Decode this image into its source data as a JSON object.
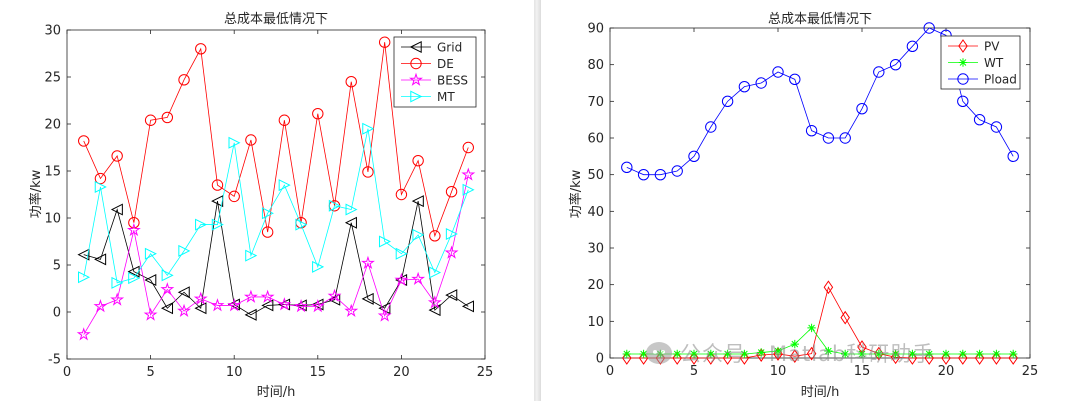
{
  "watermark": {
    "text": "公众号 · Matlab科研助手",
    "icon": "wechat-icon"
  },
  "chart_data": [
    {
      "type": "line",
      "title": "总成本最低情况下",
      "xlabel": "时间/h",
      "ylabel": "功率/kw",
      "xlim": [
        0,
        25
      ],
      "ylim": [
        -5,
        30
      ],
      "xticks": [
        0,
        5,
        10,
        15,
        20,
        25
      ],
      "yticks": [
        -5,
        0,
        5,
        10,
        15,
        20,
        25,
        30
      ],
      "grid": false,
      "legend_position": "top-right",
      "x": [
        1,
        2,
        3,
        4,
        5,
        6,
        7,
        8,
        9,
        10,
        11,
        12,
        13,
        14,
        15,
        16,
        17,
        18,
        19,
        20,
        21,
        22,
        23,
        24
      ],
      "series": [
        {
          "name": "Grid",
          "color": "#000000",
          "marker": "triangle-left",
          "values": [
            6.1,
            5.6,
            10.9,
            4.3,
            3.4,
            0.4,
            2.1,
            0.4,
            11.8,
            0.8,
            -0.3,
            0.7,
            0.8,
            0.7,
            0.8,
            1.3,
            9.5,
            1.4,
            0.4,
            3.4,
            11.8,
            0.2,
            1.8,
            0.6
          ]
        },
        {
          "name": "DE",
          "color": "#ff0000",
          "marker": "circle",
          "values": [
            18.2,
            14.2,
            16.6,
            9.5,
            20.4,
            20.7,
            24.7,
            28.0,
            13.5,
            12.3,
            18.3,
            8.5,
            20.4,
            9.5,
            21.1,
            11.3,
            24.5,
            14.9,
            28.7,
            12.5,
            16.1,
            8.1,
            12.8,
            17.5
          ]
        },
        {
          "name": "BESS",
          "color": "#ff00ff",
          "marker": "star",
          "values": [
            -2.4,
            0.6,
            1.3,
            8.7,
            -0.3,
            2.4,
            0.1,
            1.4,
            0.7,
            0.7,
            1.6,
            1.6,
            0.8,
            0.6,
            0.6,
            1.7,
            0.1,
            5.2,
            -0.4,
            3.4,
            3.5,
            1.0,
            6.3,
            14.6
          ]
        },
        {
          "name": "MT",
          "color": "#00ffff",
          "marker": "triangle-right",
          "values": [
            3.7,
            13.3,
            3.1,
            3.6,
            6.2,
            3.9,
            6.5,
            9.3,
            9.3,
            18.0,
            6.0,
            10.5,
            13.5,
            9.3,
            4.8,
            11.3,
            10.9,
            19.5,
            7.5,
            6.2,
            8.2,
            4.2,
            8.3,
            13.0
          ]
        }
      ]
    },
    {
      "type": "line",
      "title": "总成本最低情况下",
      "xlabel": "时间/h",
      "ylabel": "功率/kw",
      "xlim": [
        0,
        25
      ],
      "ylim": [
        0,
        90
      ],
      "xticks": [
        0,
        5,
        10,
        15,
        20,
        25
      ],
      "yticks": [
        0,
        10,
        20,
        30,
        40,
        50,
        60,
        70,
        80,
        90
      ],
      "grid": false,
      "legend_position": "top-right",
      "x": [
        1,
        2,
        3,
        4,
        5,
        6,
        7,
        8,
        9,
        10,
        11,
        12,
        13,
        14,
        15,
        16,
        17,
        18,
        19,
        20,
        21,
        22,
        23,
        24
      ],
      "series": [
        {
          "name": "PV",
          "color": "#ff0000",
          "marker": "diamond",
          "values": [
            0,
            0,
            0,
            0,
            0,
            0,
            0,
            0,
            0.8,
            1.1,
            0.5,
            1.2,
            19.3,
            11.0,
            3.0,
            1.2,
            0.2,
            0,
            0,
            0,
            0,
            0,
            0,
            0
          ]
        },
        {
          "name": "WT",
          "color": "#00ff00",
          "marker": "asterisk",
          "values": [
            1.1,
            1.1,
            1.1,
            1.1,
            1.1,
            1.1,
            1.1,
            1.1,
            1.5,
            1.9,
            3.8,
            8.2,
            1.9,
            1.1,
            1.1,
            1.1,
            1.1,
            1.1,
            1.1,
            1.1,
            1.1,
            1.1,
            1.1,
            1.1
          ]
        },
        {
          "name": "Pload",
          "color": "#0000ff",
          "marker": "circle",
          "values": [
            52,
            50,
            50,
            51,
            55,
            63,
            70,
            74,
            75,
            78,
            76,
            62,
            60,
            60,
            68,
            78,
            80,
            85,
            90,
            88,
            70,
            65,
            63,
            55
          ]
        }
      ]
    }
  ]
}
